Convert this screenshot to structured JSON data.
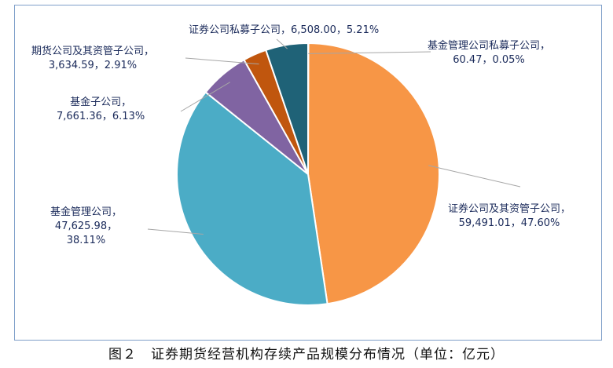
{
  "caption": "图２　证券期货经营机构存续产品规模分布情况（单位：亿元）",
  "chart_data": {
    "type": "pie",
    "title": "",
    "series": [
      {
        "slices": [
          {
            "label": "基金管理公司私募子公司，",
            "value_text": "60.47，0.05%",
            "value": 60.47,
            "percent": 0.05,
            "color": "#4a7cc4"
          },
          {
            "label": "证券公司及其资管子公司，",
            "value_text": "59,491.01，47.60%",
            "value": 59491.01,
            "percent": 47.6,
            "color": "#f79646"
          },
          {
            "label": "基金管理公司，",
            "value_text": "47,625.98，",
            "value_text2": "38.11%",
            "value": 47625.98,
            "percent": 38.11,
            "color": "#4bacc6"
          },
          {
            "label": "基金子公司，",
            "value_text": "7,661.36，6.13%",
            "value": 7661.36,
            "percent": 6.13,
            "color": "#8064a2"
          },
          {
            "label": "期货公司及其资管子公司，",
            "value_text": "3,634.59，2.91%",
            "value": 3634.59,
            "percent": 2.91,
            "color": "#c0560e"
          },
          {
            "label": "证券公司私募子公司，",
            "value_text": "6,508.00，5.21%",
            "value": 6508.0,
            "percent": 5.21,
            "color": "#1f6277"
          }
        ]
      }
    ],
    "legend": "none"
  }
}
